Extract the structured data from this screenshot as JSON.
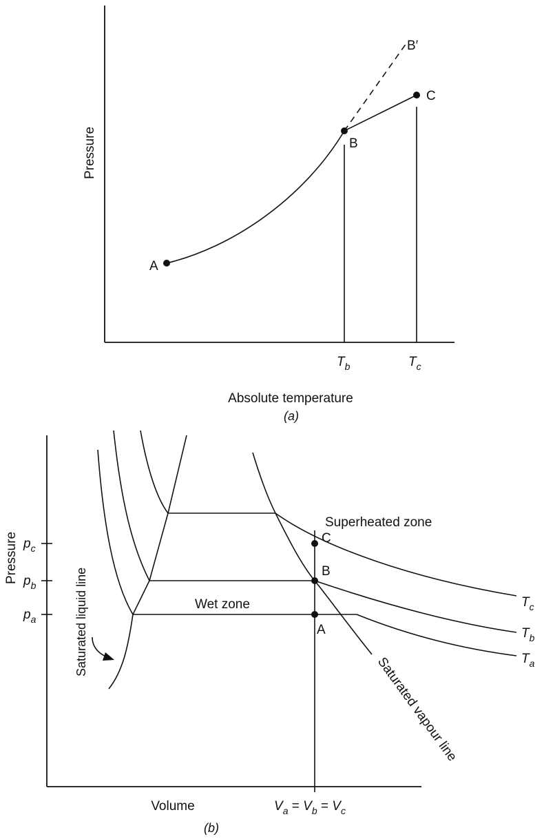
{
  "diagram_a": {
    "ylabel": "Pressure",
    "xlabel": "Absolute temperature",
    "caption": "(a)",
    "points": {
      "A": "A",
      "B": "B",
      "B_prime": "B′",
      "C": "C"
    },
    "ticks": {
      "Tb_main": "T",
      "Tb_sub": "b",
      "Tc_main": "T",
      "Tc_sub": "c"
    }
  },
  "diagram_b": {
    "ylabel": "Pressure",
    "xlabel": "Volume",
    "caption": "(b)",
    "pressure_ticks": [
      {
        "main": "p",
        "sub": "c"
      },
      {
        "main": "p",
        "sub": "b"
      },
      {
        "main": "p",
        "sub": "a"
      }
    ],
    "volume_label": {
      "v": "V",
      "a": "a",
      "eq1": " = ",
      "b": "b",
      "eq2": " = ",
      "c": "c"
    },
    "zones": {
      "superheated": "Superheated zone",
      "wet": "Wet zone"
    },
    "lines": {
      "saturated_liquid": "Saturated liquid line",
      "saturated_vapour": "Saturated vapour line"
    },
    "points": {
      "A": "A",
      "B": "B",
      "C": "C"
    },
    "isotherms": [
      {
        "main": "T",
        "sub": "c"
      },
      {
        "main": "T",
        "sub": "b"
      },
      {
        "main": "T",
        "sub": "a"
      }
    ]
  }
}
